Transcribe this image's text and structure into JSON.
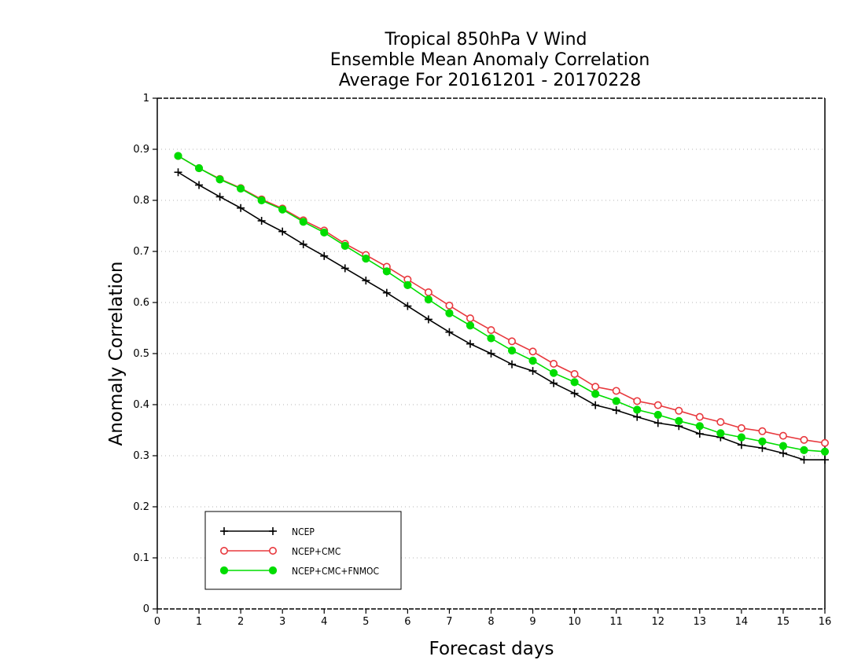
{
  "chart_data": {
    "type": "line",
    "title": [
      "Tropical 850hPa V Wind",
      "Ensemble Mean Anomaly Correlation",
      "Average For 20161201 - 20170228"
    ],
    "xlabel": "Forecast days",
    "ylabel": "Anomaly Correlation",
    "xlim": [
      0,
      16
    ],
    "ylim": [
      0,
      1
    ],
    "xticks": [
      "0",
      "1",
      "2",
      "3",
      "4",
      "5",
      "6",
      "7",
      "8",
      "9",
      "10",
      "11",
      "12",
      "13",
      "14",
      "15",
      "16"
    ],
    "yticks": [
      "0",
      "0.1",
      "0.2",
      "0.3",
      "0.4",
      "0.5",
      "0.6",
      "0.7",
      "0.8",
      "0.9",
      "1"
    ],
    "grid": "horizontal dotted",
    "legend_position": "bottom-left",
    "x": [
      0.5,
      1,
      1.5,
      2,
      2.5,
      3,
      3.5,
      4,
      4.5,
      5,
      5.5,
      6,
      6.5,
      7,
      7.5,
      8,
      8.5,
      9,
      9.5,
      10,
      10.5,
      11,
      11.5,
      12,
      12.5,
      13,
      13.5,
      14,
      14.5,
      15,
      15.5,
      16
    ],
    "series": [
      {
        "name": "NCEP",
        "color": "#000000",
        "marker": "plus",
        "values": [
          0.855,
          0.83,
          0.807,
          0.785,
          0.76,
          0.739,
          0.714,
          0.691,
          0.667,
          0.643,
          0.619,
          0.593,
          0.567,
          0.542,
          0.519,
          0.5,
          0.479,
          0.466,
          0.442,
          0.422,
          0.399,
          0.389,
          0.376,
          0.364,
          0.358,
          0.343,
          0.336,
          0.321,
          0.315,
          0.305,
          0.292,
          0.292
        ]
      },
      {
        "name": "NCEP+CMC",
        "color": "#e8383d",
        "marker": "open-circle",
        "values": [
          0.887,
          0.863,
          0.842,
          0.824,
          0.802,
          0.784,
          0.761,
          0.741,
          0.715,
          0.693,
          0.67,
          0.645,
          0.62,
          0.594,
          0.569,
          0.546,
          0.524,
          0.504,
          0.48,
          0.46,
          0.435,
          0.427,
          0.407,
          0.399,
          0.388,
          0.376,
          0.366,
          0.354,
          0.348,
          0.339,
          0.331,
          0.325
        ]
      },
      {
        "name": "NCEP+CMC+FNMOC",
        "color": "#00dd00",
        "marker": "filled-circle",
        "values": [
          0.887,
          0.863,
          0.841,
          0.823,
          0.8,
          0.782,
          0.758,
          0.737,
          0.711,
          0.686,
          0.661,
          0.634,
          0.606,
          0.579,
          0.555,
          0.53,
          0.506,
          0.486,
          0.462,
          0.444,
          0.421,
          0.407,
          0.39,
          0.38,
          0.368,
          0.358,
          0.344,
          0.336,
          0.328,
          0.319,
          0.311,
          0.308
        ]
      }
    ]
  }
}
